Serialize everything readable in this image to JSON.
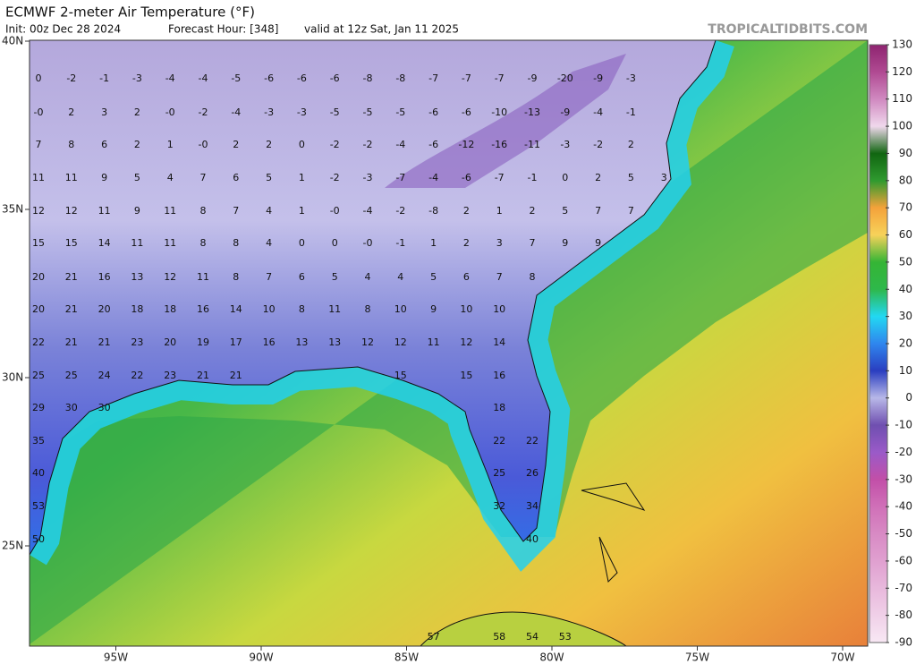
{
  "header": {
    "title": "ECMWF 2-meter Air Temperature (°F)",
    "init": "Init: 00z Dec 28 2024",
    "forecast_hour": "Forecast Hour: [348]",
    "valid": "valid at 12z Sat, Jan 11 2025",
    "brand": "TROPICALTIDBITS.COM"
  },
  "latitudes": [
    {
      "value": 40,
      "label": "40N"
    },
    {
      "value": 35,
      "label": "35N"
    },
    {
      "value": 30,
      "label": "30N"
    },
    {
      "value": 25,
      "label": "25N"
    }
  ],
  "longitudes": [
    {
      "value": -95,
      "label": "95W"
    },
    {
      "value": -90,
      "label": "90W"
    },
    {
      "value": -85,
      "label": "85W"
    },
    {
      "value": -80,
      "label": "80W"
    },
    {
      "value": -75,
      "label": "75W"
    },
    {
      "value": -70,
      "label": "70W"
    }
  ],
  "colorbar": {
    "ticks": [
      130,
      120,
      110,
      100,
      90,
      80,
      70,
      60,
      50,
      40,
      30,
      20,
      10,
      0,
      -10,
      -20,
      -30,
      -40,
      -50,
      -60,
      -70,
      -80,
      -90
    ],
    "colors": [
      "#8e2470",
      "#b04a92",
      "#d089c0",
      "#f0d8ec",
      "#116611",
      "#2f9a2f",
      "#f4a23a",
      "#f7d25a",
      "#35b535",
      "#2eb84a",
      "#22d8f2",
      "#2f86ee",
      "#2a3ec0",
      "#b8b8e8",
      "#6f4fb0",
      "#9a5ac8",
      "#c24fa8",
      "#d070b8",
      "#d88ac4",
      "#e0a0d0",
      "#e8b8dc",
      "#f0d0e8",
      "#f8e8f4"
    ]
  },
  "stations": [
    [
      0,
      -2,
      -1,
      -3,
      -4,
      -4,
      -5,
      -6,
      -6,
      -6,
      -8,
      -8,
      -7,
      -7,
      -7,
      -9,
      -20,
      -9,
      -3
    ],
    [
      "-0",
      2,
      3,
      2,
      "-0",
      -2,
      -4,
      -3,
      -3,
      -5,
      -5,
      -5,
      -6,
      -6,
      -10,
      -13,
      -9,
      -4,
      -1
    ],
    [
      7,
      8,
      6,
      2,
      1,
      "-0",
      2,
      2,
      0,
      -2,
      -2,
      -4,
      -6,
      -12,
      -16,
      -11,
      -3,
      -2,
      2
    ],
    [
      11,
      11,
      9,
      5,
      4,
      7,
      6,
      5,
      1,
      -2,
      -3,
      -7,
      -4,
      -6,
      -7,
      -1,
      0,
      2,
      5,
      3
    ],
    [
      12,
      12,
      11,
      9,
      11,
      8,
      7,
      4,
      1,
      "-0",
      -4,
      -2,
      -8,
      2,
      1,
      2,
      5,
      7,
      7
    ],
    [
      15,
      15,
      14,
      11,
      11,
      8,
      8,
      4,
      0,
      0,
      "-0",
      -1,
      1,
      2,
      3,
      7,
      9,
      9
    ],
    [
      20,
      21,
      16,
      13,
      12,
      11,
      8,
      7,
      6,
      5,
      4,
      4,
      5,
      6,
      7,
      8
    ],
    [
      20,
      21,
      20,
      18,
      18,
      16,
      14,
      10,
      8,
      11,
      8,
      10,
      9,
      10,
      10
    ],
    [
      22,
      21,
      21,
      23,
      20,
      19,
      17,
      16,
      13,
      13,
      12,
      12,
      11,
      12,
      14
    ],
    [
      25,
      25,
      24,
      22,
      23,
      21,
      21,
      15,
      15,
      16
    ],
    [
      29,
      30,
      30,
      18
    ],
    [
      35,
      22,
      22
    ],
    [
      40,
      25,
      26
    ],
    [
      53,
      32,
      34
    ],
    [
      50,
      40
    ],
    [
      57,
      58,
      54,
      53
    ]
  ]
}
